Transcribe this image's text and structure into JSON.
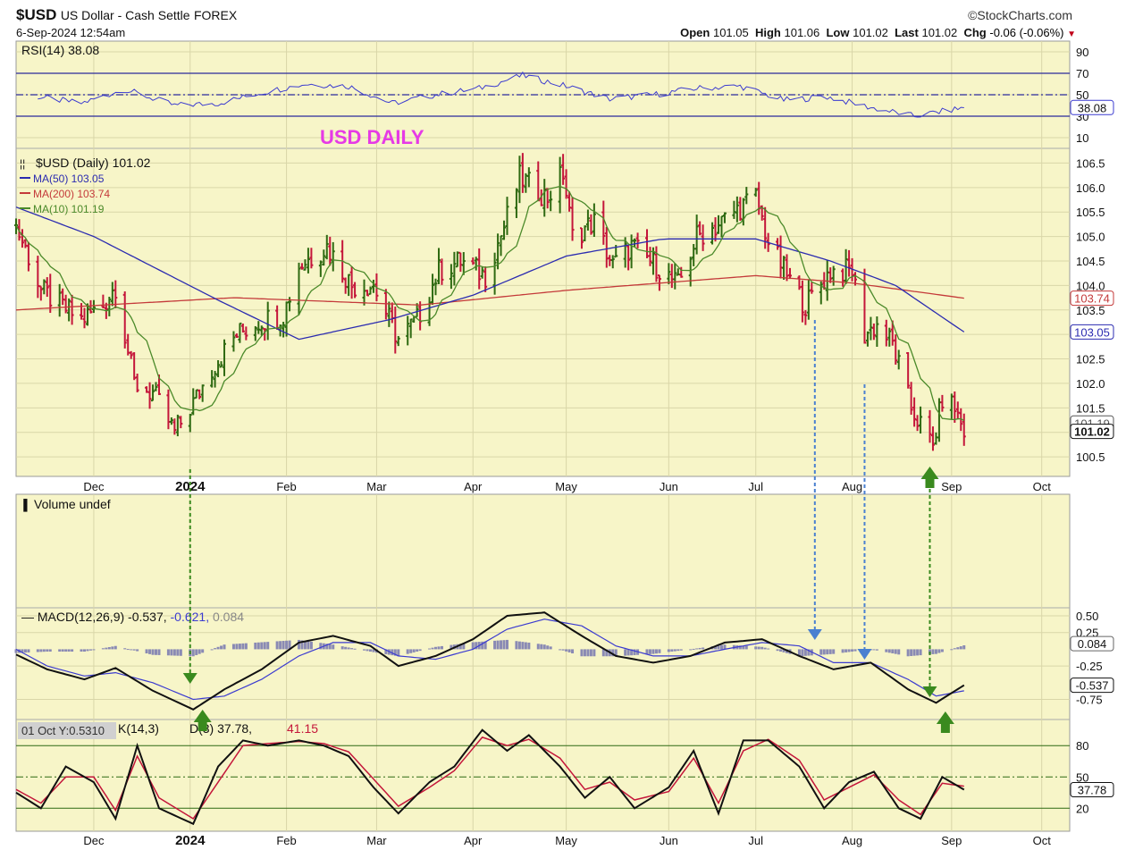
{
  "header": {
    "symbol": "$USD",
    "description": "US Dollar - Cash Settle",
    "exchange": "FOREX",
    "brand": "©StockCharts.com",
    "datetime": "6-Sep-2024 12:54am",
    "open_label": "Open",
    "open": "101.05",
    "high_label": "High",
    "high": "101.06",
    "low_label": "Low",
    "low": "101.02",
    "last_label": "Last",
    "last": "101.02",
    "chg_label": "Chg",
    "chg": "-0.06 (-0.06%)"
  },
  "colors": {
    "panel_bg": "#f7f5c8",
    "grid": "#d9d6a8",
    "price_up": "#2f6a12",
    "price_down": "#c4163a",
    "ma50": "#2b2bb0",
    "ma200": "#c43a3a",
    "ma10": "#4b8a2a",
    "rsi": "#3b3bd0",
    "macd": "#111111",
    "signal": "#3b3bd0",
    "histogram": "#8a8ab4",
    "annotation_text": "#e63ae6",
    "arrow_green": "#3a8a1e",
    "arrow_blue": "#4a80d0"
  },
  "chart_data": [
    {
      "type": "line",
      "panel": "rsi",
      "label": "RSI(14) 38.08",
      "y_ticks": [
        90,
        70,
        50,
        30,
        10
      ],
      "y_range": [
        0,
        100
      ],
      "reference_lines": [
        70,
        50,
        30
      ],
      "last_value": "38.08",
      "series": [
        {
          "name": "RSI(14)",
          "dates": [
            "2023-11-13",
            "2023-11-27",
            "2023-12-11",
            "2023-12-27",
            "2024-01-10",
            "2024-01-24",
            "2024-02-07",
            "2024-02-21",
            "2024-03-06",
            "2024-03-20",
            "2024-04-03",
            "2024-04-17",
            "2024-05-01",
            "2024-05-15",
            "2024-05-29",
            "2024-06-12",
            "2024-06-26",
            "2024-07-10",
            "2024-07-24",
            "2024-08-07",
            "2024-08-21",
            "2024-09-06"
          ],
          "values": [
            48,
            42,
            55,
            40,
            42,
            52,
            60,
            58,
            42,
            50,
            56,
            68,
            58,
            46,
            50,
            56,
            58,
            45,
            48,
            38,
            30,
            38
          ]
        }
      ]
    },
    {
      "type": "candlestick",
      "panel": "price",
      "title": "USD DAILY",
      "legend": [
        {
          "name": "$USD (Daily)",
          "value": "101.02"
        },
        {
          "name": "MA(50)",
          "value": "103.05"
        },
        {
          "name": "MA(200)",
          "value": "103.74"
        },
        {
          "name": "MA(10)",
          "value": "101.19"
        }
      ],
      "y_ticks": [
        "106.5",
        "106.0",
        "105.5",
        "105.0",
        "104.5",
        "104.0",
        "103.5",
        "103.0",
        "102.5",
        "102.0",
        "101.5",
        "101.0",
        "100.5"
      ],
      "y_range": [
        100.1,
        106.8
      ],
      "x_range": [
        "2023-11-06",
        "2024-10-10"
      ],
      "x_ticks": [
        {
          "date": "2023-12-01",
          "label": "Dec"
        },
        {
          "date": "2024-01-01",
          "label": "2024"
        },
        {
          "date": "2024-02-01",
          "label": "Feb"
        },
        {
          "date": "2024-03-01",
          "label": "Mar"
        },
        {
          "date": "2024-04-01",
          "label": "Apr"
        },
        {
          "date": "2024-05-01",
          "label": "May"
        },
        {
          "date": "2024-06-03",
          "label": "Jun"
        },
        {
          "date": "2024-07-01",
          "label": "Jul"
        },
        {
          "date": "2024-08-01",
          "label": "Aug"
        },
        {
          "date": "2024-09-02",
          "label": "Sep"
        },
        {
          "date": "2024-10-01",
          "label": "Oct"
        }
      ],
      "price_path": {
        "dates": [
          "2023-11-06",
          "2023-11-10",
          "2023-11-14",
          "2023-11-20",
          "2023-11-27",
          "2023-12-04",
          "2023-12-08",
          "2023-12-14",
          "2023-12-20",
          "2023-12-27",
          "2024-01-02",
          "2024-01-08",
          "2024-01-16",
          "2024-01-24",
          "2024-01-31",
          "2024-02-05",
          "2024-02-14",
          "2024-02-22",
          "2024-02-29",
          "2024-03-08",
          "2024-03-14",
          "2024-03-21",
          "2024-03-28",
          "2024-04-05",
          "2024-04-11",
          "2024-04-16",
          "2024-04-25",
          "2024-04-30",
          "2024-05-03",
          "2024-05-10",
          "2024-05-16",
          "2024-05-22",
          "2024-05-30",
          "2024-06-06",
          "2024-06-12",
          "2024-06-18",
          "2024-06-26",
          "2024-07-01",
          "2024-07-05",
          "2024-07-12",
          "2024-07-17",
          "2024-07-25",
          "2024-08-01",
          "2024-08-05",
          "2024-08-09",
          "2024-08-14",
          "2024-08-20",
          "2024-08-27",
          "2024-08-30",
          "2024-09-03",
          "2024-09-06"
        ],
        "closes": [
          105.2,
          104.6,
          103.9,
          103.6,
          103.3,
          103.6,
          104.0,
          102.0,
          101.8,
          101.0,
          101.6,
          102.3,
          103.0,
          103.3,
          103.4,
          104.4,
          104.8,
          104.0,
          104.0,
          102.9,
          103.3,
          104.3,
          104.5,
          104.2,
          105.2,
          106.2,
          105.8,
          106.3,
          105.0,
          105.3,
          104.4,
          104.8,
          104.4,
          104.0,
          105.0,
          105.2,
          105.6,
          105.8,
          104.9,
          104.1,
          103.6,
          104.3,
          104.3,
          103.0,
          103.2,
          102.8,
          101.5,
          100.7,
          101.7,
          101.5,
          101.02
        ],
        "ma10_end": "101.19",
        "ma50_end": "103.05",
        "ma200_end": "103.74"
      }
    },
    {
      "type": "area",
      "panel": "volume",
      "label": "Volume undef"
    },
    {
      "type": "line",
      "panel": "macd",
      "label_prefix": "MACD(12,26,9)",
      "macd_value": "-0.537",
      "signal_value": "-0.621",
      "hist_value": "0.084",
      "y_ticks": [
        "0.50",
        "0.25",
        "-0.25",
        "-0.75"
      ],
      "y_range": [
        -1.05,
        0.62
      ],
      "series": [
        {
          "name": "MACD",
          "dates": [
            "2023-11-06",
            "2023-11-16",
            "2023-11-28",
            "2023-12-08",
            "2023-12-20",
            "2024-01-02",
            "2024-01-12",
            "2024-01-24",
            "2024-02-05",
            "2024-02-16",
            "2024-02-28",
            "2024-03-08",
            "2024-03-20",
            "2024-04-01",
            "2024-04-12",
            "2024-04-24",
            "2024-05-06",
            "2024-05-17",
            "2024-05-29",
            "2024-06-10",
            "2024-06-21",
            "2024-07-03",
            "2024-07-15",
            "2024-07-26",
            "2024-08-07",
            "2024-08-19",
            "2024-08-28",
            "2024-09-06"
          ],
          "values": [
            -0.08,
            -0.3,
            -0.45,
            -0.28,
            -0.62,
            -0.9,
            -0.6,
            -0.3,
            0.1,
            0.2,
            0.05,
            -0.25,
            -0.1,
            0.15,
            0.5,
            0.55,
            0.2,
            -0.1,
            -0.2,
            -0.1,
            0.1,
            0.15,
            -0.1,
            -0.3,
            -0.2,
            -0.6,
            -0.8,
            -0.537
          ]
        },
        {
          "name": "Signal",
          "dates": [
            "2023-11-06",
            "2023-11-16",
            "2023-11-28",
            "2023-12-08",
            "2023-12-20",
            "2024-01-02",
            "2024-01-12",
            "2024-01-24",
            "2024-02-05",
            "2024-02-16",
            "2024-02-28",
            "2024-03-08",
            "2024-03-20",
            "2024-04-01",
            "2024-04-12",
            "2024-04-24",
            "2024-05-06",
            "2024-05-17",
            "2024-05-29",
            "2024-06-10",
            "2024-06-21",
            "2024-07-03",
            "2024-07-15",
            "2024-07-26",
            "2024-08-07",
            "2024-08-19",
            "2024-08-28",
            "2024-09-06"
          ],
          "values": [
            0.0,
            -0.25,
            -0.4,
            -0.35,
            -0.5,
            -0.75,
            -0.7,
            -0.45,
            -0.1,
            0.1,
            0.1,
            -0.1,
            -0.15,
            0.0,
            0.3,
            0.45,
            0.35,
            0.05,
            -0.1,
            -0.1,
            0.0,
            0.1,
            0.05,
            -0.2,
            -0.2,
            -0.45,
            -0.7,
            -0.621
          ]
        }
      ]
    },
    {
      "type": "line",
      "panel": "stochastic",
      "tooltip": "01 Oct Y:0.5310",
      "label_tail": "K(14,3)",
      "label_tail2": "D(3)",
      "k_value": "37.78",
      "d_value": "41.15",
      "y_ticks": [
        80,
        50,
        20
      ],
      "y_range": [
        -2,
        105
      ],
      "reference_lines": [
        80,
        50,
        20
      ],
      "last_value": "37.78",
      "series": [
        {
          "name": "%K",
          "dates": [
            "2023-11-06",
            "2023-11-14",
            "2023-11-22",
            "2023-12-01",
            "2023-12-08",
            "2023-12-15",
            "2023-12-22",
            "2024-01-02",
            "2024-01-10",
            "2024-01-18",
            "2024-01-26",
            "2024-02-05",
            "2024-02-13",
            "2024-02-21",
            "2024-02-29",
            "2024-03-08",
            "2024-03-18",
            "2024-03-26",
            "2024-04-04",
            "2024-04-12",
            "2024-04-19",
            "2024-04-29",
            "2024-05-07",
            "2024-05-15",
            "2024-05-23",
            "2024-06-03",
            "2024-06-11",
            "2024-06-19",
            "2024-06-27",
            "2024-07-05",
            "2024-07-15",
            "2024-07-23",
            "2024-07-31",
            "2024-08-08",
            "2024-08-16",
            "2024-08-23",
            "2024-08-30",
            "2024-09-06"
          ],
          "values": [
            35,
            20,
            60,
            45,
            10,
            80,
            20,
            5,
            60,
            85,
            80,
            85,
            80,
            70,
            40,
            15,
            45,
            60,
            95,
            75,
            90,
            60,
            30,
            50,
            20,
            40,
            75,
            15,
            85,
            85,
            60,
            20,
            45,
            55,
            20,
            10,
            50,
            37.78
          ]
        },
        {
          "name": "%D",
          "dates": [
            "2023-11-06",
            "2023-11-14",
            "2023-11-22",
            "2023-12-01",
            "2023-12-08",
            "2023-12-15",
            "2023-12-22",
            "2024-01-02",
            "2024-01-10",
            "2024-01-18",
            "2024-01-26",
            "2024-02-05",
            "2024-02-13",
            "2024-02-21",
            "2024-02-29",
            "2024-03-08",
            "2024-03-18",
            "2024-03-26",
            "2024-04-04",
            "2024-04-12",
            "2024-04-19",
            "2024-04-29",
            "2024-05-07",
            "2024-05-15",
            "2024-05-23",
            "2024-06-03",
            "2024-06-11",
            "2024-06-19",
            "2024-06-27",
            "2024-07-05",
            "2024-07-15",
            "2024-07-23",
            "2024-07-31",
            "2024-08-08",
            "2024-08-16",
            "2024-08-23",
            "2024-08-30",
            "2024-09-06"
          ],
          "values": [
            38,
            25,
            50,
            50,
            18,
            70,
            30,
            10,
            45,
            80,
            82,
            84,
            82,
            74,
            48,
            22,
            40,
            56,
            88,
            80,
            86,
            68,
            38,
            45,
            28,
            36,
            68,
            25,
            75,
            86,
            66,
            28,
            40,
            52,
            28,
            14,
            44,
            41.15
          ]
        }
      ]
    }
  ]
}
